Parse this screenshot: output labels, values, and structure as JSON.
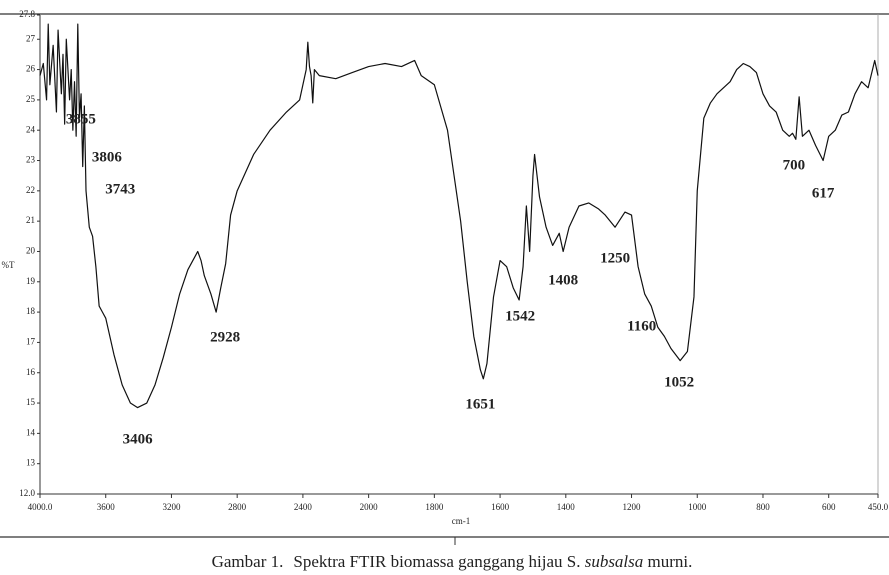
{
  "chart_data": {
    "type": "line",
    "y_label": "%T",
    "x_label": "cm-1",
    "color": "#111111",
    "xlim": [
      4000,
      450
    ],
    "ylim": [
      12,
      27.8
    ],
    "xticks": [
      {
        "value": 4000,
        "label": "4000.0"
      },
      3600,
      3200,
      2800,
      2400,
      2000,
      1800,
      1600,
      1400,
      1200,
      1000,
      800,
      600,
      {
        "value": 450,
        "label": "450.0"
      }
    ],
    "yticks": [
      {
        "value": 12,
        "label": "12.0"
      },
      13,
      14,
      15,
      16,
      17,
      18,
      19,
      20,
      21,
      22,
      23,
      24,
      25,
      26,
      27,
      27.8
    ],
    "x": [
      4000,
      3980,
      3960,
      3950,
      3940,
      3920,
      3900,
      3890,
      3870,
      3860,
      3850,
      3840,
      3820,
      3810,
      3800,
      3790,
      3780,
      3770,
      3760,
      3750,
      3740,
      3730,
      3720,
      3700,
      3680,
      3660,
      3640,
      3620,
      3600,
      3550,
      3500,
      3450,
      3406,
      3350,
      3300,
      3250,
      3200,
      3150,
      3100,
      3060,
      3040,
      3020,
      3000,
      2960,
      2928,
      2900,
      2870,
      2840,
      2800,
      2700,
      2600,
      2500,
      2420,
      2400,
      2380,
      2370,
      2360,
      2350,
      2340,
      2330,
      2300,
      2200,
      2100,
      2000,
      1950,
      1900,
      1860,
      1840,
      1800,
      1760,
      1740,
      1720,
      1700,
      1680,
      1660,
      1651,
      1640,
      1620,
      1600,
      1580,
      1560,
      1542,
      1530,
      1520,
      1510,
      1500,
      1495,
      1480,
      1460,
      1440,
      1420,
      1408,
      1390,
      1360,
      1330,
      1300,
      1280,
      1250,
      1220,
      1200,
      1180,
      1160,
      1140,
      1120,
      1100,
      1080,
      1052,
      1030,
      1010,
      1000,
      980,
      960,
      940,
      900,
      880,
      860,
      840,
      820,
      800,
      780,
      760,
      740,
      720,
      710,
      700,
      690,
      680,
      660,
      640,
      617,
      600,
      580,
      560,
      540,
      520,
      500,
      480,
      460,
      450
    ],
    "values": [
      25.8,
      26.2,
      25.0,
      27.5,
      25.5,
      26.8,
      24.6,
      27.3,
      25.2,
      26.5,
      24.2,
      27.0,
      25.0,
      26.0,
      24.0,
      25.6,
      23.8,
      27.5,
      24.4,
      25.2,
      22.8,
      24.8,
      22.0,
      20.8,
      20.5,
      19.5,
      18.2,
      18.0,
      17.8,
      16.6,
      15.6,
      15.0,
      14.85,
      15.0,
      15.6,
      16.5,
      17.5,
      18.6,
      19.4,
      19.8,
      20.0,
      19.7,
      19.2,
      18.6,
      18.0,
      18.8,
      19.6,
      21.2,
      22.0,
      23.2,
      24.0,
      24.6,
      25.0,
      25.5,
      26.0,
      26.9,
      26.1,
      25.8,
      24.9,
      26.0,
      25.8,
      25.7,
      25.9,
      26.1,
      26.2,
      26.1,
      26.3,
      25.8,
      25.5,
      24.0,
      22.5,
      21.0,
      19.0,
      17.2,
      16.1,
      15.8,
      16.3,
      18.5,
      19.7,
      19.5,
      18.8,
      18.4,
      19.5,
      21.5,
      20.0,
      22.5,
      23.2,
      21.8,
      20.8,
      20.2,
      20.6,
      20.0,
      20.8,
      21.5,
      21.6,
      21.4,
      21.2,
      20.8,
      21.3,
      21.2,
      19.5,
      18.6,
      18.2,
      17.5,
      17.2,
      16.8,
      16.4,
      16.7,
      18.5,
      22.0,
      24.4,
      24.9,
      25.2,
      25.6,
      26.0,
      26.2,
      26.1,
      25.9,
      25.2,
      24.8,
      24.6,
      24.0,
      23.8,
      23.9,
      23.7,
      25.1,
      23.8,
      24.0,
      23.5,
      23.0,
      23.8,
      24.0,
      24.5,
      24.6,
      25.2,
      25.6,
      25.4,
      26.3,
      25.8
    ],
    "peaks": [
      3855,
      3806,
      3743,
      3406,
      2928,
      1651,
      1542,
      1408,
      1250,
      1160,
      1052,
      700,
      617
    ],
    "caption": {
      "prefix": "Gambar 1.",
      "text": "Spektra FTIR biomassa ganggang hijau S. ",
      "italic": "subsalsa",
      "suffix": " murni."
    }
  }
}
